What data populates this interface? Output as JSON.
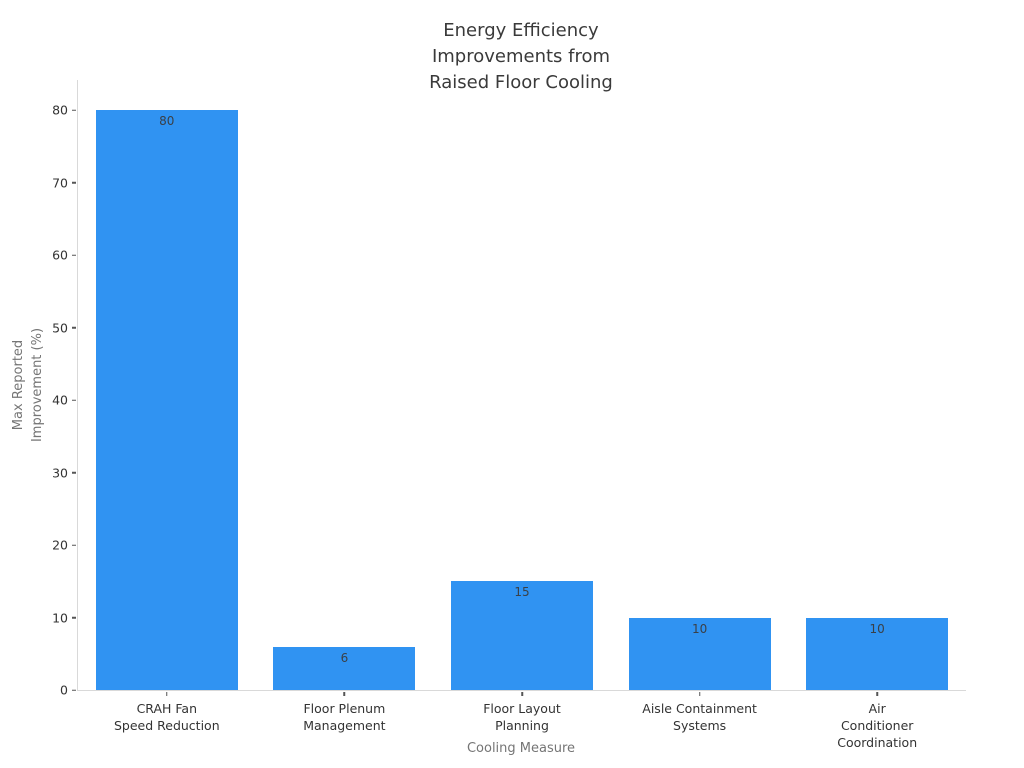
{
  "figure": {
    "title": "Energy Efficiency\nImprovements from\nRaised Floor Cooling",
    "x_axis": {
      "label": "Cooling Measure",
      "tick_labels": [
        "CRAH Fan\nSpeed Reduction",
        "Floor Plenum\nManagement",
        "Floor Layout\nPlanning",
        "Aisle Containment\nSystems",
        "Air Conditioner\nCoordination"
      ]
    },
    "y_axis": {
      "label": "Max Reported\nImprovement (%)",
      "ticks": [
        0,
        10,
        20,
        30,
        40,
        50,
        60,
        70,
        80
      ]
    },
    "colors": {
      "bar": "#3093F2",
      "spine": "#d9d9d9",
      "tick_text": "#333333",
      "axis_label_text": "#757575",
      "title_text": "#3a3a3a",
      "value_label_text": "#3a4047",
      "background": "#ffffff"
    }
  },
  "chart_data": {
    "type": "bar",
    "categories": [
      "CRAH Fan Speed Reduction",
      "Floor Plenum Management",
      "Floor Layout Planning",
      "Aisle Containment Systems",
      "Air Conditioner Coordination"
    ],
    "values": [
      80,
      6,
      15,
      10,
      10
    ],
    "value_labels": [
      "80",
      "6",
      "15",
      "10",
      "10"
    ],
    "title": "Energy Efficiency Improvements from Raised Floor Cooling",
    "xlabel": "Cooling Measure",
    "ylabel": "Max Reported Improvement (%)",
    "ylim": [
      0,
      80
    ],
    "yticks": [
      0,
      10,
      20,
      30,
      40,
      50,
      60,
      70,
      80
    ],
    "bar_color": "#3093F2",
    "bar_width_fraction": 0.8,
    "grid": false,
    "legend": null
  }
}
